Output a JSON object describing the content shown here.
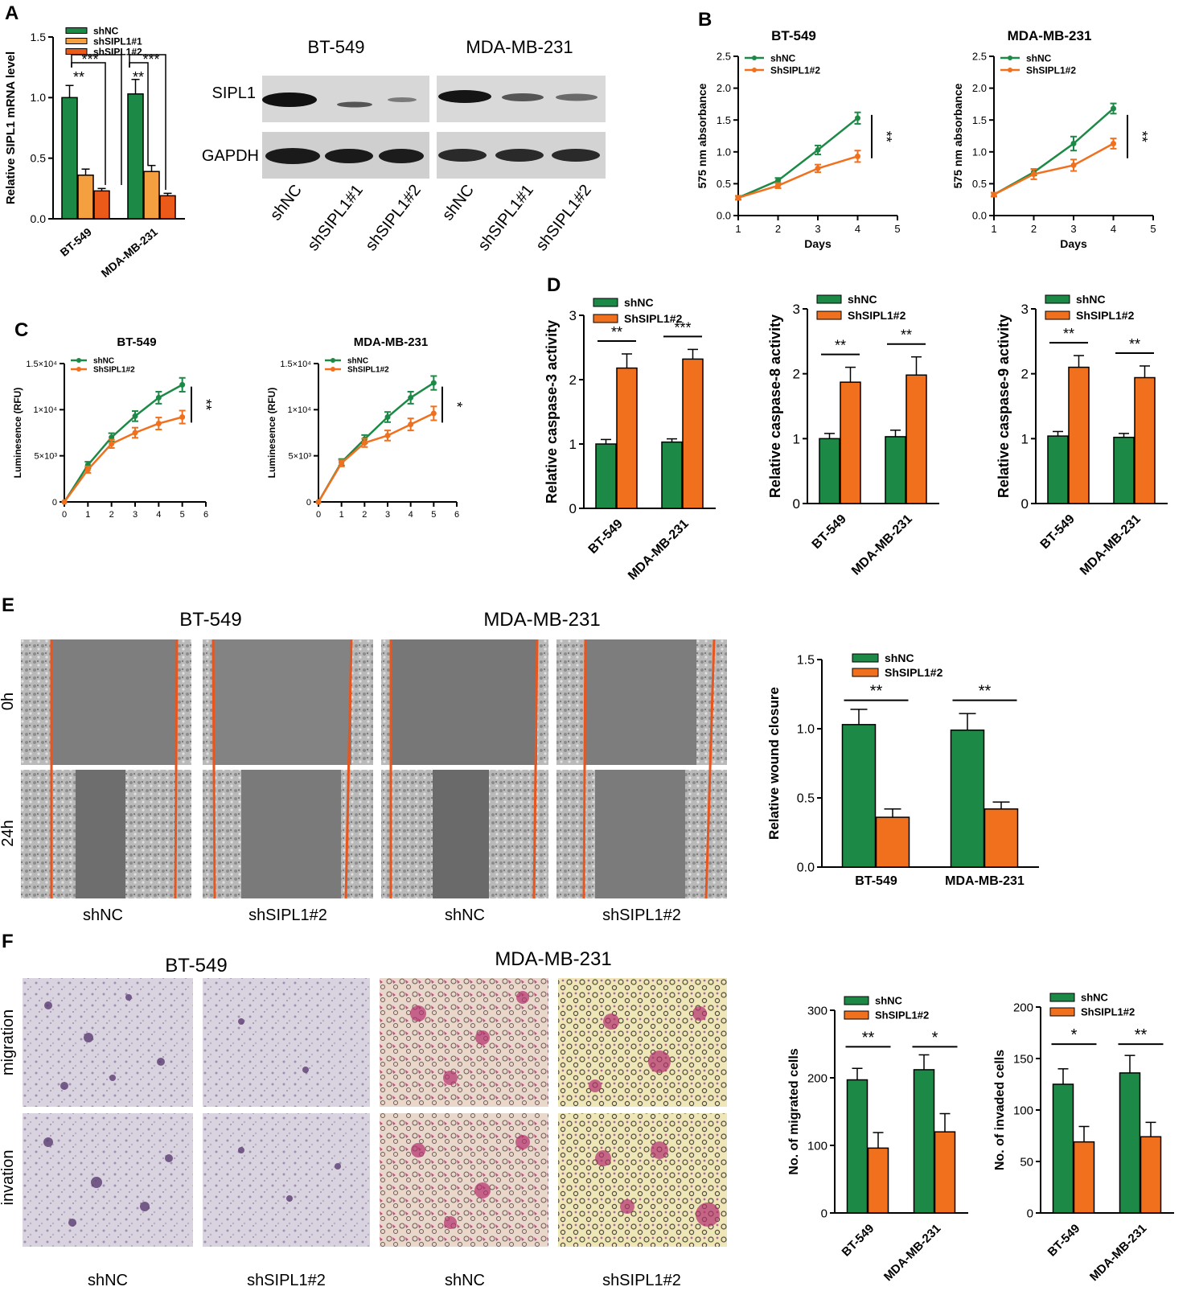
{
  "colors": {
    "green": "#1c8a46",
    "orange": "#f0701e",
    "light_orange": "#f5a040",
    "dark_orange": "#ec5a1a",
    "red_line": "#e9551c"
  },
  "panels": {
    "A": "A",
    "B": "B",
    "C": "C",
    "D": "D",
    "E": "E",
    "F": "F"
  },
  "panelA": {
    "chart_data": {
      "type": "bar",
      "ylabel": "Relative SIPL1 mRNA level",
      "ylim": [
        0,
        1.5
      ],
      "yticks": [
        "0.0",
        "0.5",
        "1.0",
        "1.5"
      ],
      "categories": [
        "BT-549",
        "MDA-MB-231"
      ],
      "series": [
        {
          "name": "shNC",
          "values": [
            1.0,
            1.03
          ],
          "errors": [
            0.1,
            0.12
          ]
        },
        {
          "name": "shSIPL1#1",
          "values": [
            0.36,
            0.39
          ],
          "errors": [
            0.05,
            0.05
          ]
        },
        {
          "name": "shSIPL1#2",
          "values": [
            0.23,
            0.19
          ],
          "errors": [
            0.02,
            0.02
          ]
        }
      ],
      "sig": [
        "**",
        "***",
        "**",
        "***"
      ]
    },
    "blot": {
      "cell_lines": [
        "BT-549",
        "MDA-MB-231"
      ],
      "rows": [
        "SIPL1",
        "GAPDH"
      ],
      "lanes": [
        "shNC",
        "shSIPL1#1",
        "shSIPL1#2",
        "shNC",
        "shSIPL1#1",
        "shSIPL1#2"
      ]
    }
  },
  "panelB": {
    "charts": [
      {
        "title": "BT-549",
        "sig": "**",
        "chart_data": {
          "type": "line",
          "xlabel": "Days",
          "ylabel": "575 nm absorbance",
          "xlim": [
            1,
            5
          ],
          "ylim": [
            0,
            2.5
          ],
          "xticks": [
            "1",
            "2",
            "3",
            "4",
            "5"
          ],
          "yticks": [
            "0.0",
            "0.5",
            "1.0",
            "1.5",
            "2.0",
            "2.5"
          ],
          "x": [
            1,
            2,
            3,
            4
          ],
          "series": [
            {
              "name": "shNC",
              "values": [
                0.28,
                0.55,
                1.03,
                1.53
              ],
              "errors": [
                0.03,
                0.04,
                0.07,
                0.09
              ]
            },
            {
              "name": "ShSIPL1#2",
              "values": [
                0.28,
                0.47,
                0.74,
                0.93
              ],
              "errors": [
                0.03,
                0.04,
                0.06,
                0.09
              ]
            }
          ]
        }
      },
      {
        "title": "MDA-MB-231",
        "sig": "**",
        "chart_data": {
          "type": "line",
          "xlabel": "Days",
          "ylabel": "575 nm absorbance",
          "xlim": [
            1,
            5
          ],
          "ylim": [
            0,
            2.5
          ],
          "xticks": [
            "1",
            "2",
            "3",
            "4",
            "5"
          ],
          "yticks": [
            "0.0",
            "0.5",
            "1.0",
            "1.5",
            "2.0",
            "2.5"
          ],
          "x": [
            1,
            2,
            3,
            4
          ],
          "series": [
            {
              "name": "shNC",
              "values": [
                0.33,
                0.68,
                1.13,
                1.68
              ],
              "errors": [
                0.03,
                0.05,
                0.11,
                0.08
              ]
            },
            {
              "name": "ShSIPL1#2",
              "values": [
                0.33,
                0.65,
                0.79,
                1.13
              ],
              "errors": [
                0.03,
                0.08,
                0.09,
                0.08
              ]
            }
          ]
        }
      }
    ]
  },
  "panelC": {
    "charts": [
      {
        "title": "BT-549",
        "sig": "**",
        "chart_data": {
          "type": "line",
          "xlabel": "",
          "ylabel": "Luminesence (RFU)",
          "xlim": [
            0,
            6
          ],
          "ylim": [
            0,
            15000
          ],
          "xticks": [
            "0",
            "1",
            "2",
            "3",
            "4",
            "5",
            "6"
          ],
          "yticks": [
            "0",
            "5×10³",
            "1×10⁴",
            "1.5×10⁴"
          ],
          "x": [
            0,
            1,
            2,
            3,
            4,
            5
          ],
          "series": [
            {
              "name": "shNC",
              "values": [
                0,
                4000,
                7000,
                9300,
                11300,
                12700
              ],
              "errors": [
                0,
                350,
                450,
                550,
                650,
                750
              ]
            },
            {
              "name": "ShSIPL1#2",
              "values": [
                0,
                3500,
                6300,
                7500,
                8500,
                9200
              ],
              "errors": [
                0,
                350,
                450,
                550,
                650,
                700
              ]
            }
          ]
        }
      },
      {
        "title": "MDA-MB-231",
        "sig": "*",
        "chart_data": {
          "type": "line",
          "xlabel": "",
          "ylabel": "Luminesence (RFU)",
          "xlim": [
            0,
            6
          ],
          "ylim": [
            0,
            15000
          ],
          "xticks": [
            "0",
            "1",
            "2",
            "3",
            "4",
            "5",
            "6"
          ],
          "yticks": [
            "0",
            "5×10³",
            "1×10⁴",
            "1.5×10⁴"
          ],
          "x": [
            0,
            1,
            2,
            3,
            4,
            5
          ],
          "series": [
            {
              "name": "shNC",
              "values": [
                0,
                4300,
                6800,
                9200,
                11300,
                12900
              ],
              "errors": [
                0,
                350,
                450,
                550,
                650,
                750
              ]
            },
            {
              "name": "ShSIPL1#2",
              "values": [
                0,
                4200,
                6400,
                7200,
                8400,
                9600
              ],
              "errors": [
                0,
                350,
                450,
                550,
                650,
                750
              ]
            }
          ]
        }
      }
    ]
  },
  "panelD": {
    "charts": [
      {
        "sig": [
          "**",
          "***"
        ],
        "chart_data": {
          "type": "bar",
          "ylabel": "Relative caspase-3 activity",
          "ylim": [
            0,
            3
          ],
          "yticks": [
            "0",
            "1",
            "2",
            "3"
          ],
          "categories": [
            "BT-549",
            "MDA-MB-231"
          ],
          "series": [
            {
              "name": "shNC",
              "values": [
                1.0,
                1.03
              ],
              "errors": [
                0.07,
                0.05
              ]
            },
            {
              "name": "ShSIPL1#2",
              "values": [
                2.18,
                2.32
              ],
              "errors": [
                0.22,
                0.15
              ]
            }
          ]
        }
      },
      {
        "sig": [
          "**",
          "**"
        ],
        "chart_data": {
          "type": "bar",
          "ylabel": "Relative caspase-8 activity",
          "ylim": [
            0,
            3
          ],
          "yticks": [
            "0",
            "1",
            "2",
            "3"
          ],
          "categories": [
            "BT-549",
            "MDA-MB-231"
          ],
          "series": [
            {
              "name": "shNC",
              "values": [
                1.0,
                1.03
              ],
              "errors": [
                0.08,
                0.1
              ]
            },
            {
              "name": "ShSIPL1#2",
              "values": [
                1.87,
                1.98
              ],
              "errors": [
                0.23,
                0.28
              ]
            }
          ]
        }
      },
      {
        "sig": [
          "**",
          "**"
        ],
        "chart_data": {
          "type": "bar",
          "ylabel": "Relative caspase-9 activity",
          "ylim": [
            0,
            3
          ],
          "yticks": [
            "0",
            "1",
            "2",
            "3"
          ],
          "categories": [
            "BT-549",
            "MDA-MB-231"
          ],
          "series": [
            {
              "name": "shNC",
              "values": [
                1.04,
                1.02
              ],
              "errors": [
                0.07,
                0.06
              ]
            },
            {
              "name": "ShSIPL1#2",
              "values": [
                2.1,
                1.94
              ],
              "errors": [
                0.18,
                0.18
              ]
            }
          ]
        }
      }
    ]
  },
  "panelE": {
    "cell_lines": [
      "BT-549",
      "MDA-MB-231"
    ],
    "rows": [
      "0h",
      "24h"
    ],
    "cols": [
      "shNC",
      "shSIPL1#2",
      "shNC",
      "shSIPL1#2"
    ],
    "sig": [
      "**",
      "**"
    ],
    "chart_data": {
      "type": "bar",
      "ylabel": "Relative wound closure",
      "ylim": [
        0,
        1.5
      ],
      "yticks": [
        "0.0",
        "0.5",
        "1.0",
        "1.5"
      ],
      "categories": [
        "BT-549",
        "MDA-MB-231"
      ],
      "series": [
        {
          "name": "shNC",
          "values": [
            1.03,
            0.99
          ],
          "errors": [
            0.11,
            0.12
          ]
        },
        {
          "name": "ShSIPL1#2",
          "values": [
            0.36,
            0.42
          ],
          "errors": [
            0.06,
            0.05
          ]
        }
      ]
    }
  },
  "panelF": {
    "cell_lines": [
      "BT-549",
      "MDA-MB-231"
    ],
    "rows": [
      "migration",
      "invation"
    ],
    "cols": [
      "shNC",
      "shSIPL1#2",
      "shNC",
      "shSIPL1#2"
    ],
    "charts": [
      {
        "sig": [
          "**",
          "*"
        ],
        "chart_data": {
          "type": "bar",
          "ylabel": "No. of migrated cells",
          "ylim": [
            0,
            300
          ],
          "yticks": [
            "0",
            "100",
            "200",
            "300"
          ],
          "categories": [
            "BT-549",
            "MDA-MB-231"
          ],
          "series": [
            {
              "name": "shNC",
              "values": [
                197,
                212
              ],
              "errors": [
                17,
                22
              ]
            },
            {
              "name": "ShSIPL1#2",
              "values": [
                96,
                120
              ],
              "errors": [
                23,
                27
              ]
            }
          ]
        }
      },
      {
        "sig": [
          "*",
          "**"
        ],
        "chart_data": {
          "type": "bar",
          "ylabel": "No. of invaded cells",
          "ylim": [
            0,
            200
          ],
          "yticks": [
            "0",
            "50",
            "100",
            "150",
            "200"
          ],
          "categories": [
            "BT-549",
            "MDA-MB-231"
          ],
          "series": [
            {
              "name": "shNC",
              "values": [
                125,
                136
              ],
              "errors": [
                15,
                17
              ]
            },
            {
              "name": "ShSIPL1#2",
              "values": [
                69,
                74
              ],
              "errors": [
                15,
                14
              ]
            }
          ]
        }
      }
    ]
  }
}
